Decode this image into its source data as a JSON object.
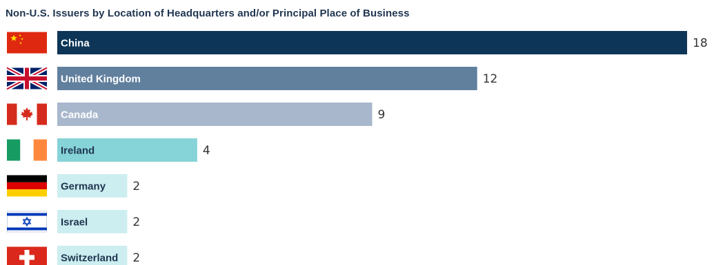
{
  "chart_data": {
    "type": "bar",
    "orientation": "horizontal",
    "title": "Non-U.S. Issuers by Location of Headquarters and/or Principal Place of Business",
    "categories": [
      "China",
      "United Kingdom",
      "Canada",
      "Ireland",
      "Germany",
      "Israel",
      "Switzerland"
    ],
    "values": [
      18,
      12,
      9,
      4,
      2,
      2,
      2
    ],
    "value_labels": [
      "18",
      "12",
      "9",
      "4",
      "2",
      "2",
      "2"
    ],
    "xlim": [
      0,
      18
    ],
    "bar_colors": [
      "#0d3557",
      "#61809e",
      "#a8b7cc",
      "#86d3d8",
      "#cdeef0",
      "#cdeef0",
      "#cdeef0"
    ],
    "label_colors": [
      "#ffffff",
      "#ffffff",
      "#ffffff",
      "#1f3550",
      "#1f3550",
      "#1f3550",
      "#1f3550"
    ],
    "flags": [
      "china-flag-icon",
      "uk-flag-icon",
      "canada-flag-icon",
      "ireland-flag-icon",
      "germany-flag-icon",
      "israel-flag-icon",
      "switzerland-flag-icon"
    ],
    "grid": false,
    "legend": "none"
  }
}
